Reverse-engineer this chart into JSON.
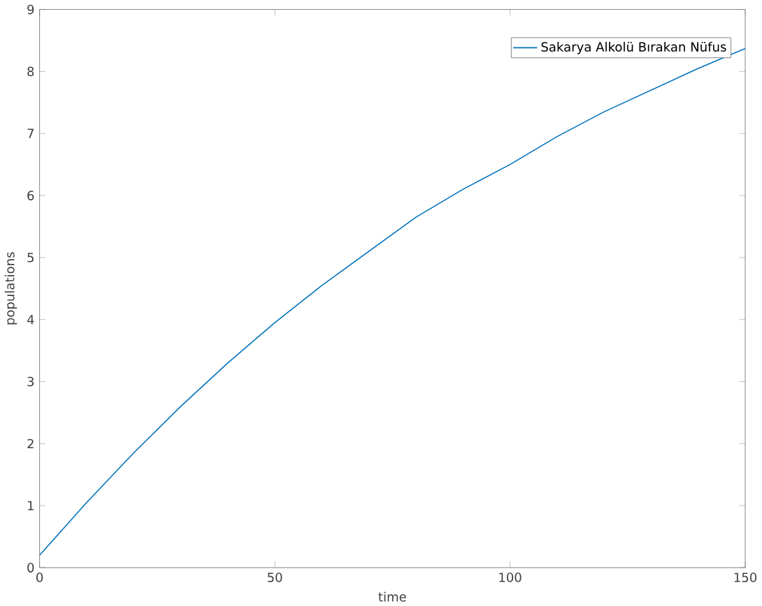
{
  "chart_data": {
    "type": "line",
    "xlabel": "time",
    "ylabel": "populations",
    "x": [
      0,
      10,
      20,
      30,
      40,
      50,
      60,
      70,
      80,
      90,
      100,
      110,
      120,
      130,
      140,
      150
    ],
    "series": [
      {
        "name": "Sakarya Alkolü Bırakan Nüfus",
        "color": "#0072bd",
        "values": [
          0.2,
          1.05,
          1.85,
          2.6,
          3.3,
          3.95,
          4.55,
          5.1,
          5.65,
          6.1,
          6.5,
          6.95,
          7.35,
          7.7,
          8.05,
          8.37
        ]
      }
    ],
    "xlim": [
      0,
      150
    ],
    "ylim": [
      0,
      9
    ],
    "xticks": [
      0,
      50,
      100,
      150
    ],
    "yticks": [
      0,
      1,
      2,
      3,
      4,
      5,
      6,
      7,
      8,
      9
    ],
    "legend": "top right",
    "grid": false,
    "marker": "none",
    "line_style": "solid"
  }
}
